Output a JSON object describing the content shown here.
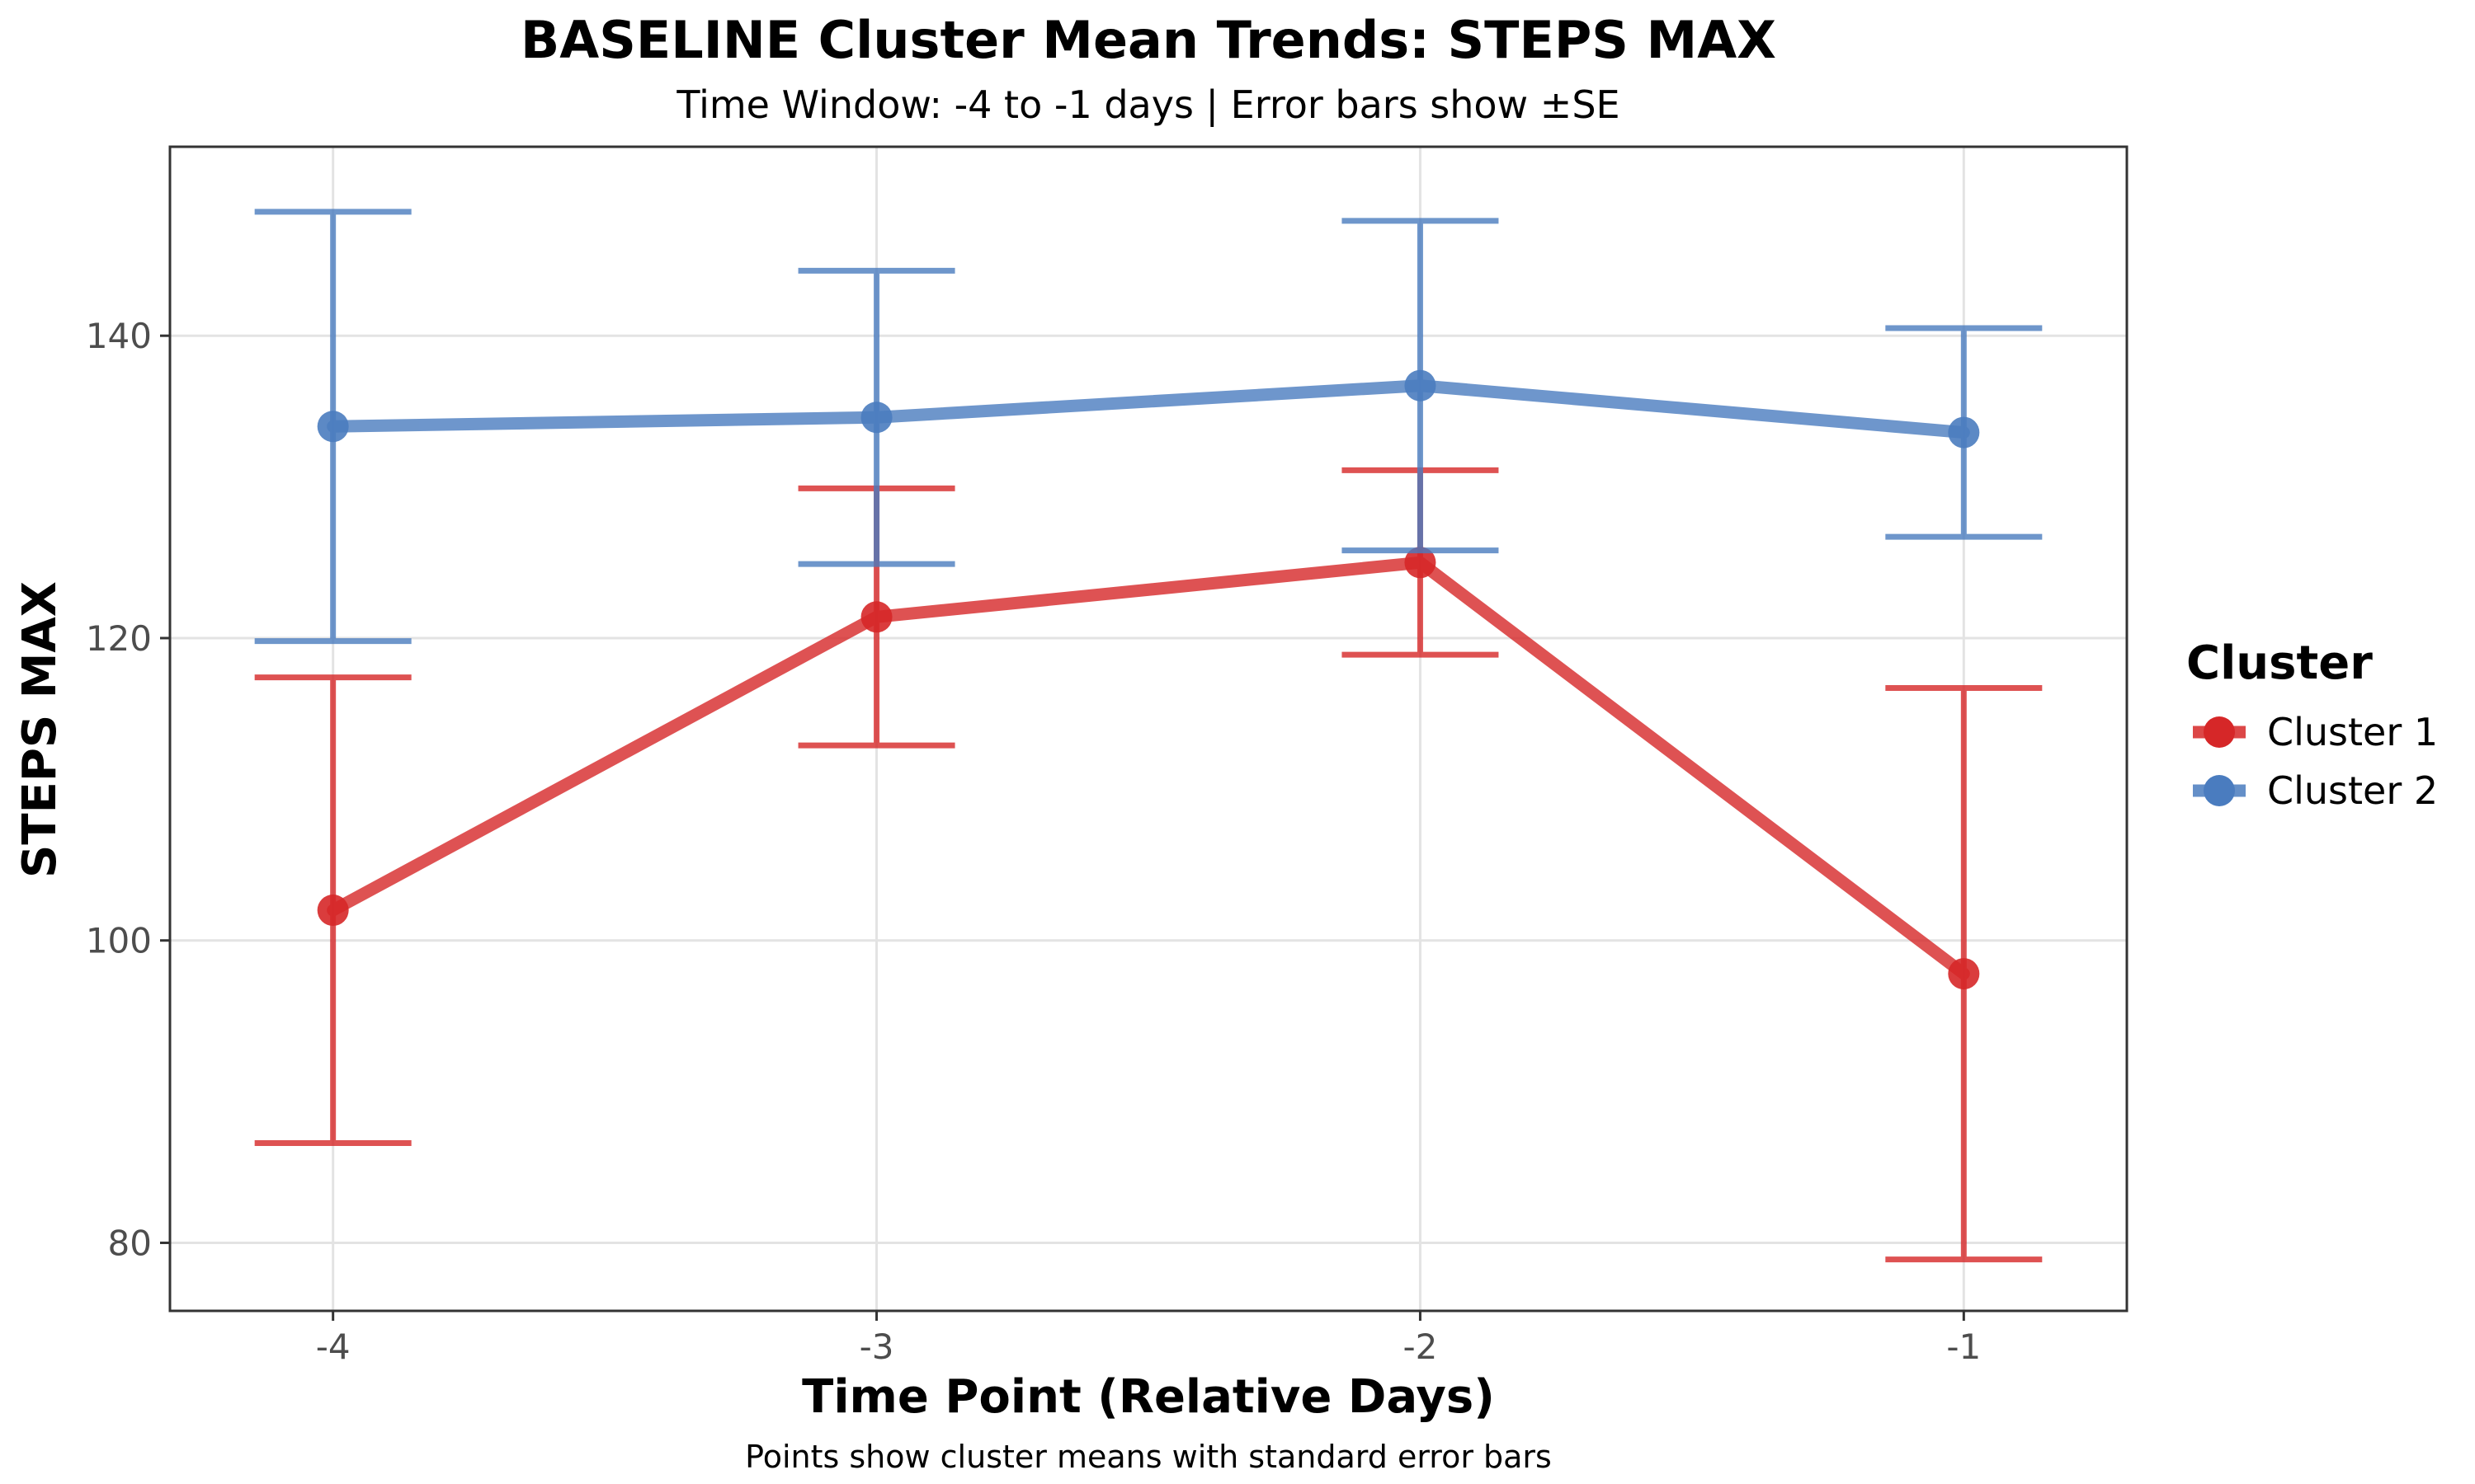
{
  "chart_data": {
    "type": "line",
    "title": "BASELINE Cluster Mean Trends: STEPS MAX",
    "subtitle": "Time Window: -4 to -1 days | Error bars show ±SE",
    "xlabel": "Time Point (Relative Days)",
    "ylabel": "STEPS MAX",
    "caption": "Points show cluster means with standard error bars",
    "x": [
      -4,
      -3,
      -2,
      -1
    ],
    "x_tick_labels": [
      "-4",
      "-3",
      "-2",
      "-1"
    ],
    "xlim": [
      -4.3,
      -0.7
    ],
    "ylim": [
      75.5,
      152.5
    ],
    "y_ticks": [
      80,
      100,
      120,
      140
    ],
    "y_tick_labels": [
      "80",
      "100",
      "120",
      "140"
    ],
    "grid": true,
    "legend": {
      "title": "Cluster",
      "position": "right"
    },
    "series": [
      {
        "name": "Cluster 1",
        "color": "#d62728",
        "values": [
          102.0,
          121.4,
          125.0,
          97.8
        ],
        "se_lower": [
          86.6,
          112.9,
          118.9,
          78.9
        ],
        "se_upper": [
          117.4,
          129.9,
          131.1,
          116.7
        ]
      },
      {
        "name": "Cluster 2",
        "color": "#4a7cbf",
        "values": [
          134.0,
          134.6,
          136.7,
          133.6
        ],
        "se_lower": [
          119.8,
          124.9,
          125.8,
          126.7
        ],
        "se_upper": [
          148.2,
          144.3,
          147.6,
          140.5
        ]
      }
    ]
  }
}
